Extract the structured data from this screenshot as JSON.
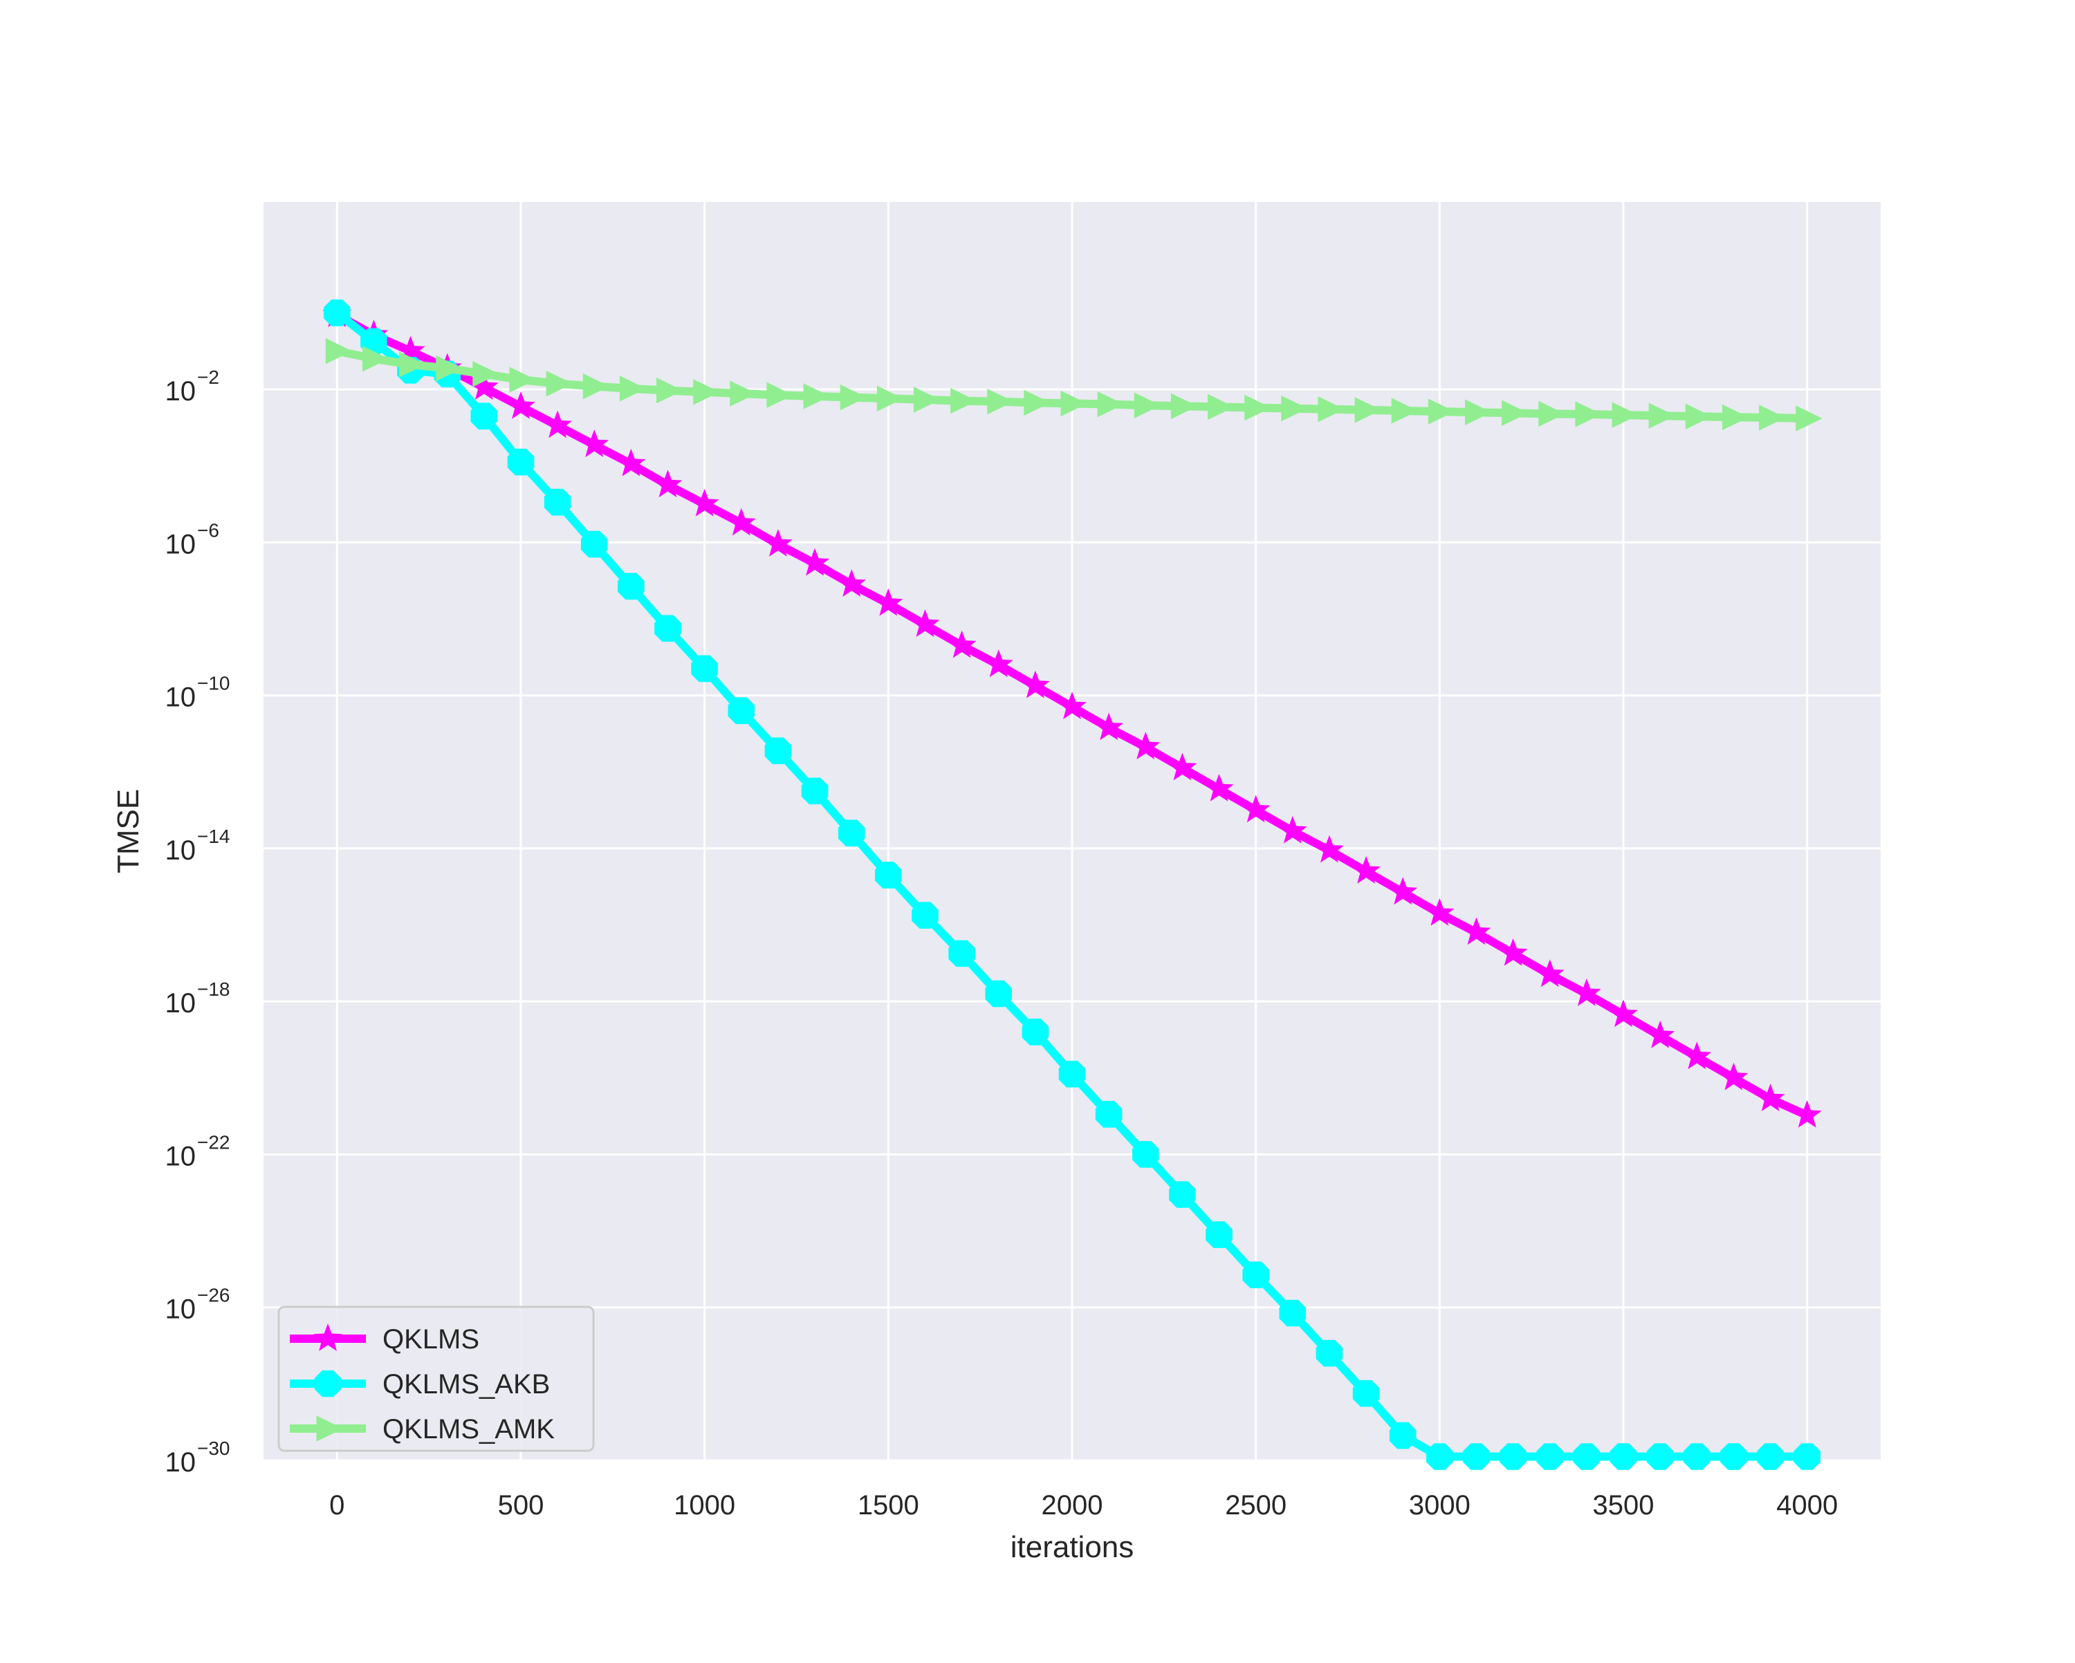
{
  "chart_data": {
    "type": "line",
    "title": "",
    "xlabel": "iterations",
    "ylabel": "TMSE",
    "x_axis": {
      "range": [
        -200,
        4200
      ],
      "ticks": [
        0,
        500,
        1000,
        1500,
        2000,
        2500,
        3000,
        3500,
        4000
      ],
      "tick_labels": [
        "0",
        "500",
        "1000",
        "1500",
        "2000",
        "2500",
        "3000",
        "3500",
        "4000"
      ]
    },
    "y_axis": {
      "scale": "log",
      "range_exponent": [
        -30,
        2.9
      ],
      "tick_exponents": [
        -2,
        -6,
        -10,
        -14,
        -18,
        -22,
        -26,
        -30
      ],
      "tick_base": "10",
      "tick_sup_labels": [
        "−2",
        "−6",
        "−10",
        "−14",
        "−18",
        "−22",
        "−26",
        "−30"
      ]
    },
    "grid": true,
    "background": "#eaeaf2",
    "legend": {
      "position": "lower-left"
    },
    "series": [
      {
        "name": "QKLMS",
        "color": "#ff00ff",
        "marker": "star",
        "x": [
          0,
          100,
          200,
          300,
          400,
          500,
          600,
          700,
          800,
          900,
          1000,
          1100,
          1200,
          1300,
          1400,
          1500,
          1600,
          1700,
          1800,
          1900,
          2000,
          2100,
          2200,
          2300,
          2400,
          2500,
          2600,
          2700,
          2800,
          2900,
          3000,
          3100,
          3200,
          3300,
          3400,
          3500,
          3600,
          3700,
          3800,
          3900,
          4000
        ],
        "y_log10": [
          -0.05,
          -0.58,
          -1.0,
          -1.45,
          -1.95,
          -2.45,
          -2.95,
          -3.45,
          -3.95,
          -4.5,
          -5.0,
          -5.5,
          -6.05,
          -6.55,
          -7.1,
          -7.6,
          -8.15,
          -8.7,
          -9.2,
          -9.75,
          -10.3,
          -10.85,
          -11.35,
          -11.9,
          -12.45,
          -13.0,
          -13.55,
          -14.05,
          -14.6,
          -15.15,
          -15.7,
          -16.2,
          -16.75,
          -17.3,
          -17.8,
          -18.35,
          -18.9,
          -19.45,
          -20.0,
          -20.55,
          -20.98
        ]
      },
      {
        "name": "QKLMS_AKB",
        "color": "#00ffff",
        "marker": "octagon",
        "x": [
          0,
          100,
          200,
          300,
          400,
          500,
          600,
          700,
          800,
          900,
          1000,
          1100,
          1200,
          1300,
          1400,
          1500,
          1600,
          1700,
          1800,
          1900,
          2000,
          2100,
          2200,
          2300,
          2400,
          2500,
          2600,
          2700,
          2800,
          2900,
          3000,
          3100,
          3200,
          3300,
          3400,
          3500,
          3600,
          3700,
          3800,
          3900,
          4000
        ],
        "y_log10": [
          0.0,
          -0.75,
          -1.5,
          -1.6,
          -2.7,
          -3.9,
          -4.95,
          -6.05,
          -7.15,
          -8.25,
          -9.3,
          -10.4,
          -11.45,
          -12.5,
          -13.6,
          -14.7,
          -15.75,
          -16.75,
          -17.8,
          -18.8,
          -19.9,
          -20.95,
          -22.0,
          -23.05,
          -24.1,
          -25.15,
          -26.15,
          -27.2,
          -28.25,
          -29.35,
          -29.9,
          -29.9,
          -29.9,
          -29.9,
          -29.9,
          -29.9,
          -29.9,
          -29.9,
          -29.9,
          -29.9,
          -29.9
        ]
      },
      {
        "name": "QKLMS_AMK",
        "color": "#90ee90",
        "marker": "triangle-right",
        "x": [
          0,
          100,
          200,
          300,
          400,
          500,
          600,
          700,
          800,
          900,
          1000,
          1100,
          1200,
          1300,
          1400,
          1500,
          1600,
          1700,
          1800,
          1900,
          2000,
          2100,
          2200,
          2300,
          2400,
          2500,
          2600,
          2700,
          2800,
          2900,
          3000,
          3100,
          3200,
          3300,
          3400,
          3500,
          3600,
          3700,
          3800,
          3900,
          4000
        ],
        "y_log10": [
          -1.0,
          -1.2,
          -1.35,
          -1.45,
          -1.6,
          -1.75,
          -1.85,
          -1.92,
          -1.98,
          -2.03,
          -2.07,
          -2.11,
          -2.15,
          -2.18,
          -2.21,
          -2.24,
          -2.27,
          -2.3,
          -2.32,
          -2.35,
          -2.37,
          -2.39,
          -2.42,
          -2.44,
          -2.46,
          -2.48,
          -2.5,
          -2.52,
          -2.54,
          -2.56,
          -2.58,
          -2.6,
          -2.62,
          -2.64,
          -2.65,
          -2.67,
          -2.69,
          -2.71,
          -2.73,
          -2.74,
          -2.76
        ]
      }
    ]
  }
}
